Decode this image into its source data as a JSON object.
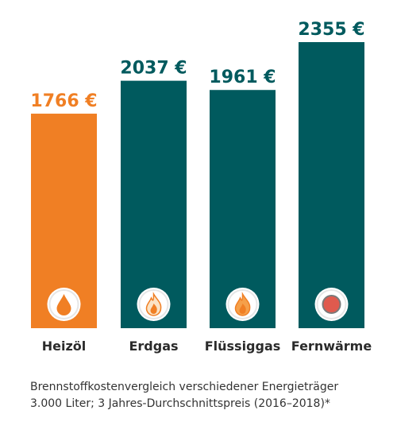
{
  "chart_data": {
    "type": "bar",
    "categories": [
      "Heizöl",
      "Erdgas",
      "Flüssiggas",
      "Fernwärme"
    ],
    "values": [
      1766,
      2037,
      1961,
      2355
    ],
    "value_labels": [
      "1766 €",
      "2037 €",
      "1961 €",
      "2355 €"
    ],
    "unit": "€",
    "ylim": [
      0,
      2355
    ],
    "grid": false,
    "bar_colors": [
      "#f07f24",
      "#005a5e",
      "#005a5e",
      "#005a5e"
    ],
    "label_colors": [
      "#f07f24",
      "#005a5e",
      "#005a5e",
      "#005a5e"
    ],
    "icons": [
      "oil-drop-icon",
      "gas-flame-icon",
      "liquid-gas-flame-icon",
      "district-heat-icon"
    ]
  },
  "caption": {
    "line1": "Brennstoffkostenvergleich verschiedener Energieträger",
    "line2": "3.000 Liter; 3 Jahres-Durchschnittspreis (2016–2018)*"
  }
}
